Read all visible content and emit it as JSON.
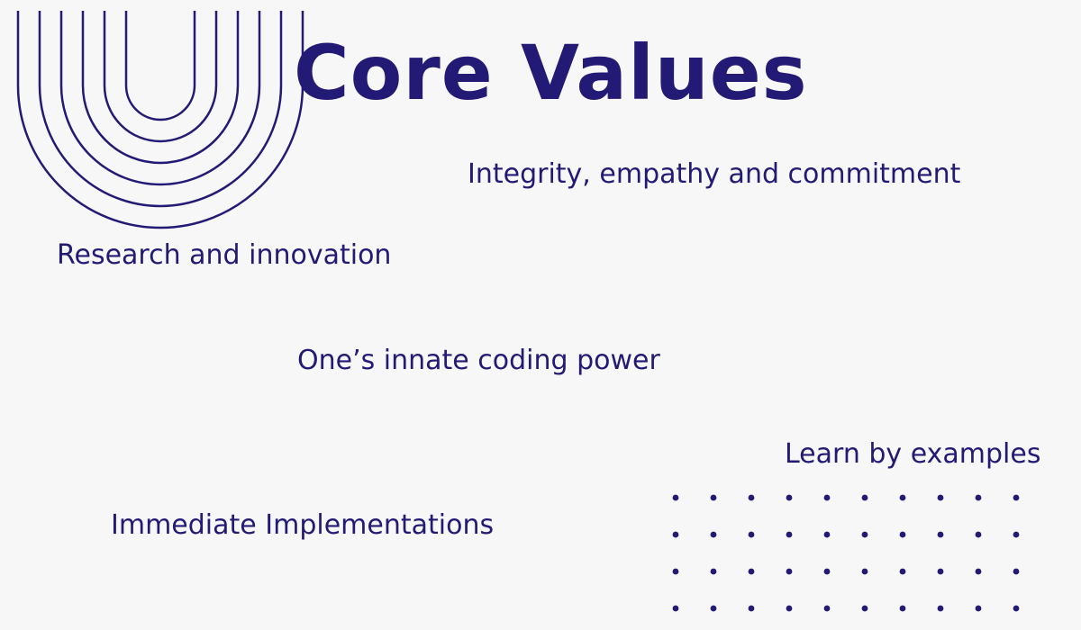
{
  "slide": {
    "title": "Core Values",
    "values": [
      "Integrity, empathy and commitment",
      "Research and innovation",
      "One’s innate coding power",
      "Learn by examples",
      "Immediate Implementations"
    ]
  },
  "decorations": {
    "arch_icon": "concentric-u-arches",
    "dot_grid_icon": "dot-grid"
  },
  "colors": {
    "text": "#231a75",
    "background": "#f7f7f7"
  }
}
